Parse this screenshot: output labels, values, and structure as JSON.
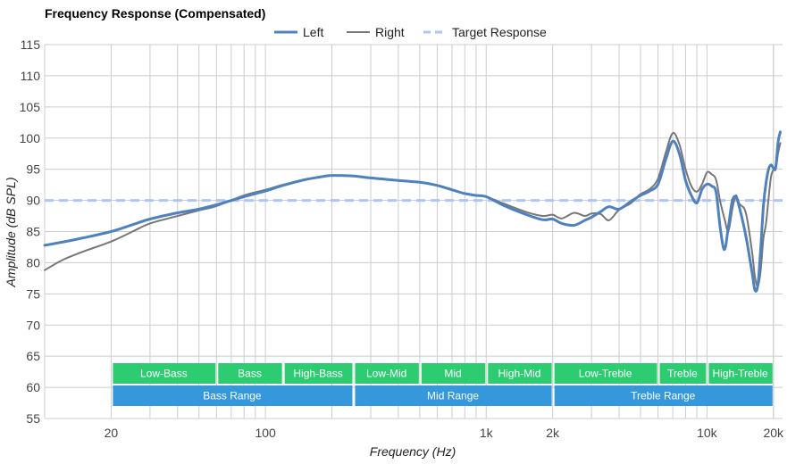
{
  "chart_data": {
    "type": "line",
    "title": "Frequency Response (Compensated)",
    "xlabel": "Frequency (Hz)",
    "ylabel": "Amplitude (dB SPL)",
    "xscale": "log",
    "xlim": [
      10,
      22000
    ],
    "ylim": [
      55,
      115
    ],
    "grid": true,
    "legend_position": "top-center",
    "x_ticks": [
      {
        "value": 20,
        "label": "20"
      },
      {
        "value": 100,
        "label": "100"
      },
      {
        "value": 1000,
        "label": "1k"
      },
      {
        "value": 2000,
        "label": "2k"
      },
      {
        "value": 10000,
        "label": "10k"
      },
      {
        "value": 20000,
        "label": "20k"
      }
    ],
    "y_ticks": [
      55,
      60,
      65,
      70,
      75,
      80,
      85,
      90,
      95,
      100,
      105,
      110,
      115
    ],
    "series": [
      {
        "name": "Left",
        "color": "#4f81bd",
        "style": "solid",
        "points": [
          [
            10,
            82.8
          ],
          [
            12,
            83.3
          ],
          [
            15,
            84.0
          ],
          [
            20,
            85.0
          ],
          [
            25,
            86.1
          ],
          [
            30,
            87.0
          ],
          [
            40,
            88.0
          ],
          [
            50,
            88.6
          ],
          [
            60,
            89.3
          ],
          [
            80,
            90.6
          ],
          [
            100,
            91.5
          ],
          [
            120,
            92.4
          ],
          [
            150,
            93.3
          ],
          [
            180,
            93.8
          ],
          [
            200,
            94.0
          ],
          [
            250,
            93.9
          ],
          [
            300,
            93.6
          ],
          [
            400,
            93.2
          ],
          [
            500,
            92.9
          ],
          [
            600,
            92.4
          ],
          [
            700,
            91.7
          ],
          [
            800,
            91.1
          ],
          [
            900,
            90.8
          ],
          [
            1000,
            90.6
          ],
          [
            1200,
            89.2
          ],
          [
            1500,
            87.8
          ],
          [
            1800,
            86.9
          ],
          [
            2000,
            87.0
          ],
          [
            2200,
            86.3
          ],
          [
            2500,
            86.0
          ],
          [
            2800,
            86.8
          ],
          [
            3000,
            87.3
          ],
          [
            3300,
            88.2
          ],
          [
            3600,
            89.0
          ],
          [
            4000,
            88.6
          ],
          [
            4500,
            89.8
          ],
          [
            5000,
            90.8
          ],
          [
            5500,
            91.5
          ],
          [
            6000,
            92.6
          ],
          [
            6500,
            96.5
          ],
          [
            7000,
            99.5
          ],
          [
            7500,
            97.5
          ],
          [
            8000,
            93.2
          ],
          [
            8500,
            90.8
          ],
          [
            9000,
            89.6
          ],
          [
            9500,
            91.8
          ],
          [
            10000,
            92.6
          ],
          [
            10500,
            92.3
          ],
          [
            11000,
            91.3
          ],
          [
            11500,
            85.4
          ],
          [
            12000,
            82.1
          ],
          [
            12500,
            85.7
          ],
          [
            13000,
            89.8
          ],
          [
            13500,
            90.6
          ],
          [
            14000,
            89.0
          ],
          [
            15000,
            84.3
          ],
          [
            16000,
            78.5
          ],
          [
            16500,
            75.6
          ],
          [
            17000,
            76.4
          ],
          [
            17500,
            82.0
          ],
          [
            18000,
            89.0
          ],
          [
            18500,
            92.7
          ],
          [
            19000,
            95.0
          ],
          [
            19500,
            95.7
          ],
          [
            20000,
            95.2
          ],
          [
            20500,
            95.4
          ],
          [
            21000,
            99.4
          ],
          [
            21500,
            101.0
          ]
        ]
      },
      {
        "name": "Right",
        "color": "#777777",
        "style": "solid",
        "points": [
          [
            10,
            78.8
          ],
          [
            12,
            80.4
          ],
          [
            15,
            81.8
          ],
          [
            20,
            83.4
          ],
          [
            25,
            85.0
          ],
          [
            30,
            86.3
          ],
          [
            40,
            87.5
          ],
          [
            50,
            88.4
          ],
          [
            60,
            89.1
          ],
          [
            80,
            90.8
          ],
          [
            100,
            91.7
          ],
          [
            120,
            92.5
          ],
          [
            150,
            93.3
          ],
          [
            180,
            93.8
          ],
          [
            200,
            94.0
          ],
          [
            250,
            93.9
          ],
          [
            300,
            93.6
          ],
          [
            400,
            93.2
          ],
          [
            500,
            92.9
          ],
          [
            600,
            92.4
          ],
          [
            700,
            91.7
          ],
          [
            800,
            91.1
          ],
          [
            900,
            90.8
          ],
          [
            1000,
            90.6
          ],
          [
            1200,
            89.5
          ],
          [
            1500,
            88.2
          ],
          [
            1800,
            87.5
          ],
          [
            2000,
            87.7
          ],
          [
            2200,
            87.1
          ],
          [
            2500,
            88.0
          ],
          [
            2800,
            87.5
          ],
          [
            3000,
            87.9
          ],
          [
            3300,
            87.8
          ],
          [
            3600,
            86.8
          ],
          [
            4000,
            88.5
          ],
          [
            4500,
            89.5
          ],
          [
            5000,
            91.0
          ],
          [
            5500,
            91.8
          ],
          [
            6000,
            93.5
          ],
          [
            6500,
            97.6
          ],
          [
            7000,
            100.8
          ],
          [
            7500,
            99.0
          ],
          [
            8000,
            95.0
          ],
          [
            8500,
            92.3
          ],
          [
            9000,
            91.4
          ],
          [
            9500,
            92.6
          ],
          [
            10000,
            94.5
          ],
          [
            10500,
            94.2
          ],
          [
            11000,
            93.3
          ],
          [
            11500,
            89.7
          ],
          [
            12000,
            87.1
          ],
          [
            12500,
            85.1
          ],
          [
            13000,
            88.4
          ],
          [
            13500,
            90.8
          ],
          [
            14000,
            89.5
          ],
          [
            15000,
            88.0
          ],
          [
            16000,
            81.8
          ],
          [
            16500,
            77.7
          ],
          [
            17000,
            76.3
          ],
          [
            17500,
            78.6
          ],
          [
            18000,
            83.8
          ],
          [
            18500,
            86.2
          ],
          [
            19000,
            90.2
          ],
          [
            19500,
            93.8
          ],
          [
            20000,
            94.9
          ],
          [
            20500,
            95.0
          ],
          [
            21000,
            97.6
          ],
          [
            21500,
            99.2
          ]
        ]
      },
      {
        "name": "Target Response",
        "color": "#aec6f5",
        "style": "dashed",
        "points": [
          [
            10,
            90.0
          ],
          [
            22000,
            90.0
          ]
        ]
      }
    ],
    "bands": {
      "upper": [
        {
          "label": "Low-Bass",
          "start": 20,
          "end": 60,
          "color": "#2ecc71"
        },
        {
          "label": "Bass",
          "start": 60,
          "end": 120,
          "color": "#2ecc71"
        },
        {
          "label": "High-Bass",
          "start": 120,
          "end": 250,
          "color": "#2ecc71"
        },
        {
          "label": "Low-Mid",
          "start": 250,
          "end": 500,
          "color": "#2ecc71"
        },
        {
          "label": "Mid",
          "start": 500,
          "end": 1000,
          "color": "#2ecc71"
        },
        {
          "label": "High-Mid",
          "start": 1000,
          "end": 2000,
          "color": "#2ecc71"
        },
        {
          "label": "Low-Treble",
          "start": 2000,
          "end": 6000,
          "color": "#2ecc71"
        },
        {
          "label": "Treble",
          "start": 6000,
          "end": 10000,
          "color": "#2ecc71"
        },
        {
          "label": "High-Treble",
          "start": 10000,
          "end": 20000,
          "color": "#2ecc71"
        }
      ],
      "lower": [
        {
          "label": "Bass Range",
          "start": 20,
          "end": 250,
          "color": "#3498db"
        },
        {
          "label": "Mid Range",
          "start": 250,
          "end": 2000,
          "color": "#3498db"
        },
        {
          "label": "Treble Range",
          "start": 2000,
          "end": 20000,
          "color": "#3498db"
        }
      ]
    }
  }
}
